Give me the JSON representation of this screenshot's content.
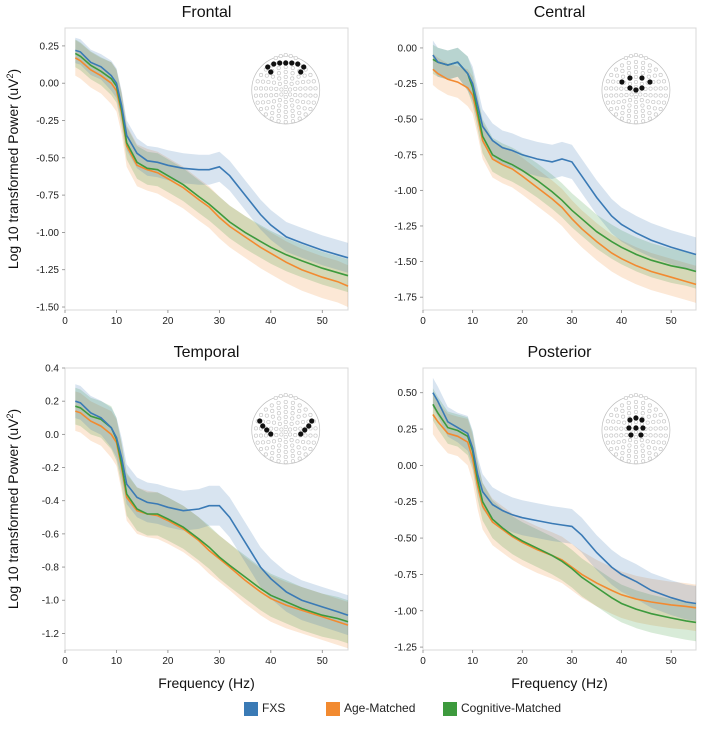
{
  "figure": {
    "ylabel": "Log 10 transformed Power (uV",
    "ylabel_sup": "2",
    "ylabel_close": ")",
    "xlabel": "Frequency (Hz)"
  },
  "colors": {
    "FXS": "#3a7ab5",
    "Age-Matched": "#f28a30",
    "Cognitive-Matched": "#3d9a3d",
    "electrode_inactive": "#c8c8c8",
    "electrode_active": "#111111"
  },
  "legend": [
    {
      "label": "FXS",
      "color": "#3a7ab5"
    },
    {
      "label": "Age-Matched",
      "color": "#f28a30"
    },
    {
      "label": "Cognitive-Matched",
      "color": "#3d9a3d"
    }
  ],
  "chart_data": [
    {
      "type": "line",
      "title": "Frontal",
      "region": "frontal",
      "xlabel": "",
      "ylabel": "Log 10 transformed Power (uV2)",
      "xlim": [
        0,
        55
      ],
      "ylim": [
        -1.52,
        0.37
      ],
      "xticks": [
        0,
        10,
        20,
        30,
        40,
        50
      ],
      "yticks": [
        0.25,
        0.0,
        -0.25,
        -0.5,
        -0.75,
        -1.0,
        -1.25,
        -1.5
      ],
      "ytick_labels": [
        "0.25",
        "0.00",
        "-0.25",
        "-0.50",
        "-0.75",
        "-1.00",
        "-1.25",
        "-1.50"
      ],
      "grid": false,
      "series": [
        {
          "name": "FXS",
          "x": [
            2,
            3,
            5,
            7,
            9,
            10,
            11,
            12,
            14,
            16,
            18,
            20,
            23,
            26,
            28,
            30,
            32,
            35,
            38,
            40,
            43,
            46,
            50,
            53,
            55
          ],
          "y": [
            0.22,
            0.21,
            0.14,
            0.11,
            0.05,
            0.0,
            -0.15,
            -0.35,
            -0.47,
            -0.52,
            -0.53,
            -0.55,
            -0.57,
            -0.58,
            -0.58,
            -0.56,
            -0.62,
            -0.75,
            -0.88,
            -0.95,
            -1.03,
            -1.07,
            -1.12,
            -1.15,
            -1.17
          ],
          "spread": 0.1
        },
        {
          "name": "Age-Matched",
          "x": [
            2,
            3,
            5,
            7,
            9,
            10,
            11,
            12,
            14,
            16,
            18,
            20,
            23,
            26,
            28,
            30,
            32,
            35,
            38,
            40,
            43,
            46,
            50,
            53,
            55
          ],
          "y": [
            0.17,
            0.15,
            0.09,
            0.05,
            0.0,
            -0.05,
            -0.2,
            -0.42,
            -0.55,
            -0.58,
            -0.6,
            -0.64,
            -0.7,
            -0.78,
            -0.83,
            -0.9,
            -0.96,
            -1.03,
            -1.1,
            -1.14,
            -1.2,
            -1.25,
            -1.3,
            -1.33,
            -1.36
          ],
          "spread": 0.14
        },
        {
          "name": "Cognitive-Matched",
          "x": [
            2,
            3,
            5,
            7,
            9,
            10,
            11,
            12,
            14,
            16,
            18,
            20,
            23,
            26,
            28,
            30,
            32,
            35,
            38,
            40,
            43,
            46,
            50,
            53,
            55
          ],
          "y": [
            0.2,
            0.18,
            0.12,
            0.08,
            0.03,
            -0.02,
            -0.18,
            -0.4,
            -0.53,
            -0.57,
            -0.58,
            -0.62,
            -0.68,
            -0.76,
            -0.81,
            -0.87,
            -0.93,
            -1.0,
            -1.06,
            -1.1,
            -1.15,
            -1.19,
            -1.24,
            -1.27,
            -1.29
          ],
          "spread": 0.11
        }
      ]
    },
    {
      "type": "line",
      "title": "Central",
      "region": "central",
      "xlabel": "",
      "ylabel": "",
      "xlim": [
        0,
        55
      ],
      "ylim": [
        -1.84,
        0.14
      ],
      "xticks": [
        0,
        10,
        20,
        30,
        40,
        50
      ],
      "yticks": [
        0.0,
        -0.25,
        -0.5,
        -0.75,
        -1.0,
        -1.25,
        -1.5,
        -1.75
      ],
      "ytick_labels": [
        "0.00",
        "-0.25",
        "-0.50",
        "-0.75",
        "-1.00",
        "-1.25",
        "-1.50",
        "-1.75"
      ],
      "grid": false,
      "series": [
        {
          "name": "FXS",
          "x": [
            2,
            3,
            5,
            7,
            9,
            10,
            11,
            12,
            14,
            16,
            18,
            20,
            23,
            26,
            28,
            30,
            32,
            35,
            38,
            40,
            43,
            46,
            50,
            53,
            55
          ],
          "y": [
            -0.05,
            -0.1,
            -0.12,
            -0.1,
            -0.18,
            -0.25,
            -0.4,
            -0.55,
            -0.65,
            -0.7,
            -0.72,
            -0.75,
            -0.78,
            -0.8,
            -0.78,
            -0.8,
            -0.9,
            -1.05,
            -1.18,
            -1.24,
            -1.3,
            -1.35,
            -1.4,
            -1.43,
            -1.45
          ],
          "spread": 0.12
        },
        {
          "name": "Age-Matched",
          "x": [
            2,
            3,
            5,
            7,
            9,
            10,
            11,
            12,
            14,
            16,
            18,
            20,
            23,
            26,
            28,
            30,
            32,
            35,
            38,
            40,
            43,
            46,
            50,
            53,
            55
          ],
          "y": [
            -0.15,
            -0.18,
            -0.22,
            -0.24,
            -0.28,
            -0.33,
            -0.48,
            -0.65,
            -0.78,
            -0.82,
            -0.85,
            -0.9,
            -0.98,
            -1.06,
            -1.12,
            -1.2,
            -1.27,
            -1.36,
            -1.44,
            -1.48,
            -1.53,
            -1.57,
            -1.61,
            -1.64,
            -1.66
          ],
          "spread": 0.13
        },
        {
          "name": "Cognitive-Matched",
          "x": [
            2,
            3,
            5,
            7,
            9,
            10,
            11,
            12,
            14,
            16,
            18,
            20,
            23,
            26,
            28,
            30,
            32,
            35,
            38,
            40,
            43,
            46,
            50,
            53,
            55
          ],
          "y": [
            -0.08,
            -0.1,
            -0.12,
            -0.1,
            -0.18,
            -0.28,
            -0.45,
            -0.62,
            -0.75,
            -0.79,
            -0.82,
            -0.86,
            -0.93,
            -1.01,
            -1.07,
            -1.14,
            -1.2,
            -1.29,
            -1.36,
            -1.4,
            -1.45,
            -1.49,
            -1.53,
            -1.55,
            -1.57
          ],
          "spread": 0.12
        }
      ]
    },
    {
      "type": "line",
      "title": "Temporal",
      "region": "temporal",
      "xlabel": "Frequency (Hz)",
      "ylabel": "Log 10 transformed Power (uV2)",
      "xlim": [
        0,
        55
      ],
      "ylim": [
        -1.3,
        0.4
      ],
      "xticks": [
        0,
        10,
        20,
        30,
        40,
        50
      ],
      "yticks": [
        0.4,
        0.2,
        0.0,
        -0.2,
        -0.4,
        -0.6,
        -0.8,
        -1.0,
        -1.2
      ],
      "ytick_labels": [
        "0.4",
        "0.2",
        "0.0",
        "-0.2",
        "-0.4",
        "-0.6",
        "-0.8",
        "-1.0",
        "-1.2"
      ],
      "grid": false,
      "series": [
        {
          "name": "FXS",
          "x": [
            2,
            3,
            5,
            7,
            9,
            10,
            11,
            12,
            14,
            16,
            18,
            20,
            23,
            26,
            28,
            30,
            32,
            35,
            38,
            40,
            43,
            46,
            50,
            53,
            55
          ],
          "y": [
            0.2,
            0.19,
            0.13,
            0.1,
            0.04,
            -0.02,
            -0.14,
            -0.3,
            -0.38,
            -0.41,
            -0.42,
            -0.44,
            -0.46,
            -0.45,
            -0.43,
            -0.43,
            -0.5,
            -0.65,
            -0.8,
            -0.87,
            -0.95,
            -1.0,
            -1.04,
            -1.07,
            -1.09
          ],
          "spread": 0.12
        },
        {
          "name": "Age-Matched",
          "x": [
            2,
            3,
            5,
            7,
            9,
            10,
            11,
            12,
            14,
            16,
            18,
            20,
            23,
            26,
            28,
            30,
            32,
            35,
            38,
            40,
            43,
            46,
            50,
            53,
            55
          ],
          "y": [
            0.14,
            0.13,
            0.08,
            0.05,
            0.0,
            -0.05,
            -0.2,
            -0.38,
            -0.46,
            -0.48,
            -0.49,
            -0.52,
            -0.57,
            -0.64,
            -0.7,
            -0.75,
            -0.8,
            -0.88,
            -0.95,
            -0.99,
            -1.03,
            -1.06,
            -1.1,
            -1.13,
            -1.15
          ],
          "spread": 0.14
        },
        {
          "name": "Cognitive-Matched",
          "x": [
            2,
            3,
            5,
            7,
            9,
            10,
            11,
            12,
            14,
            16,
            18,
            20,
            23,
            26,
            28,
            30,
            32,
            35,
            38,
            40,
            43,
            46,
            50,
            53,
            55
          ],
          "y": [
            0.17,
            0.16,
            0.11,
            0.09,
            0.04,
            -0.03,
            -0.18,
            -0.36,
            -0.45,
            -0.48,
            -0.48,
            -0.51,
            -0.56,
            -0.63,
            -0.68,
            -0.74,
            -0.79,
            -0.86,
            -0.93,
            -0.97,
            -1.01,
            -1.05,
            -1.09,
            -1.11,
            -1.13
          ],
          "spread": 0.13
        }
      ]
    },
    {
      "type": "line",
      "title": "Posterior",
      "region": "posterior",
      "xlabel": "Frequency (Hz)",
      "ylabel": "",
      "xlim": [
        0,
        55
      ],
      "ylim": [
        -1.27,
        0.67
      ],
      "xticks": [
        0,
        10,
        20,
        30,
        40,
        50
      ],
      "yticks": [
        0.5,
        0.25,
        0.0,
        -0.25,
        -0.5,
        -0.75,
        -1.0,
        -1.25
      ],
      "ytick_labels": [
        "0.50",
        "0.25",
        "0.00",
        "-0.25",
        "-0.50",
        "-0.75",
        "-1.00",
        "-1.25"
      ],
      "grid": false,
      "series": [
        {
          "name": "FXS",
          "x": [
            2,
            3,
            5,
            7,
            9,
            10,
            11,
            12,
            14,
            16,
            18,
            20,
            23,
            26,
            28,
            30,
            32,
            35,
            38,
            40,
            43,
            46,
            50,
            53,
            55
          ],
          "y": [
            0.5,
            0.44,
            0.3,
            0.26,
            0.22,
            0.12,
            -0.06,
            -0.18,
            -0.27,
            -0.31,
            -0.34,
            -0.36,
            -0.38,
            -0.4,
            -0.41,
            -0.42,
            -0.48,
            -0.6,
            -0.7,
            -0.75,
            -0.8,
            -0.86,
            -0.91,
            -0.94,
            -0.95
          ],
          "spread": 0.12
        },
        {
          "name": "Age-Matched",
          "x": [
            2,
            3,
            5,
            7,
            9,
            10,
            11,
            12,
            14,
            16,
            18,
            20,
            23,
            26,
            28,
            30,
            32,
            35,
            38,
            40,
            43,
            46,
            50,
            53,
            55
          ],
          "y": [
            0.35,
            0.3,
            0.22,
            0.2,
            0.16,
            0.05,
            -0.14,
            -0.28,
            -0.39,
            -0.44,
            -0.49,
            -0.53,
            -0.58,
            -0.62,
            -0.65,
            -0.7,
            -0.75,
            -0.81,
            -0.86,
            -0.89,
            -0.92,
            -0.94,
            -0.96,
            -0.97,
            -0.98
          ],
          "spread": 0.16
        },
        {
          "name": "Cognitive-Matched",
          "x": [
            2,
            3,
            5,
            7,
            9,
            10,
            11,
            12,
            14,
            16,
            18,
            20,
            23,
            26,
            28,
            30,
            32,
            35,
            38,
            40,
            43,
            46,
            50,
            53,
            55
          ],
          "y": [
            0.42,
            0.36,
            0.26,
            0.24,
            0.2,
            0.1,
            -0.1,
            -0.25,
            -0.37,
            -0.43,
            -0.48,
            -0.52,
            -0.57,
            -0.62,
            -0.66,
            -0.71,
            -0.77,
            -0.84,
            -0.91,
            -0.95,
            -0.99,
            -1.02,
            -1.05,
            -1.07,
            -1.08
          ],
          "spread": 0.13
        }
      ]
    }
  ]
}
